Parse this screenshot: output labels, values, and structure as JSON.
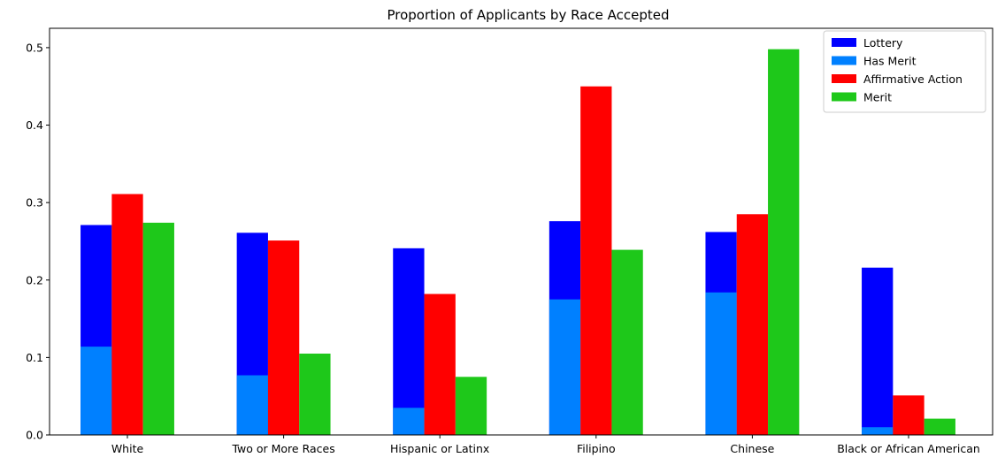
{
  "chart_data": {
    "type": "bar",
    "title": "Proportion of Applicants by Race Accepted",
    "xlabel": "",
    "ylabel": "",
    "categories": [
      "White",
      "Two or More Races",
      "Hispanic or Latinx",
      "Filipino",
      "Chinese",
      "Black or African American"
    ],
    "ylim": [
      0,
      0.525
    ],
    "yticks": [
      0.0,
      0.1,
      0.2,
      0.3,
      0.4,
      0.5
    ],
    "ytick_labels": [
      "0.0",
      "0.1",
      "0.2",
      "0.3",
      "0.4",
      "0.5"
    ],
    "grid": false,
    "legend_position": "top-right",
    "series": [
      {
        "name": "Lottery",
        "color": "#0000ff",
        "values": [
          0.271,
          0.261,
          0.241,
          0.276,
          0.262,
          0.216
        ]
      },
      {
        "name": "Has Merit",
        "color": "#0080ff",
        "values": [
          0.114,
          0.077,
          0.035,
          0.175,
          0.184,
          0.01
        ]
      },
      {
        "name": "Affirmative Action",
        "color": "#ff0000",
        "values": [
          0.311,
          0.251,
          0.182,
          0.45,
          0.285,
          0.051
        ]
      },
      {
        "name": "Merit",
        "color": "#1ec81a",
        "values": [
          0.274,
          0.105,
          0.075,
          0.239,
          0.498,
          0.021
        ]
      }
    ]
  }
}
